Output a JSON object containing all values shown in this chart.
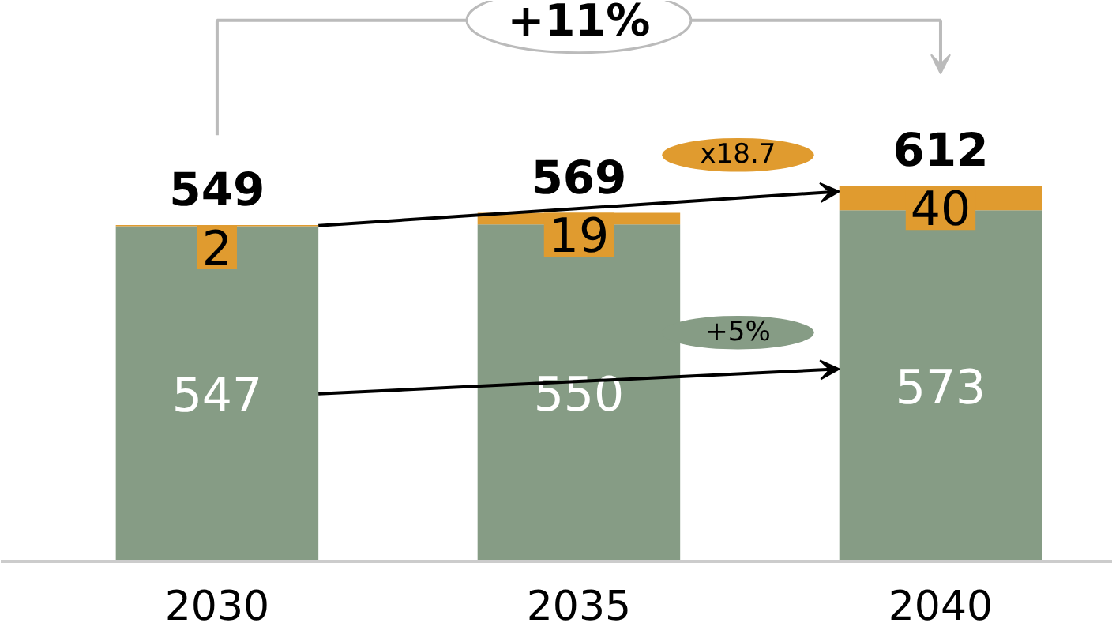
{
  "chart_data": {
    "type": "bar",
    "stacked": true,
    "data_labels": true,
    "categories": [
      "2030",
      "2035",
      "2040"
    ],
    "series": [
      {
        "color": "#869c85",
        "values": [
          547,
          550,
          573
        ]
      },
      {
        "color": "#e09b2f",
        "values": [
          2,
          19,
          40
        ]
      }
    ],
    "totals": [
      "549",
      "569",
      "612"
    ],
    "annotations": [
      "+11%",
      "x18.7",
      "+5%"
    ],
    "grid": false
  }
}
